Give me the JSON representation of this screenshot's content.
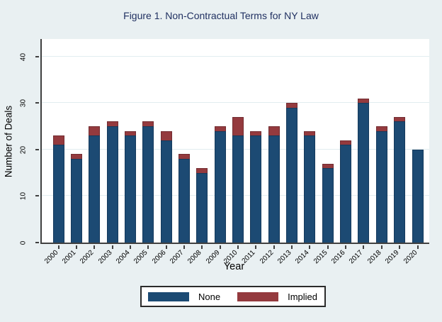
{
  "figure": {
    "title": "Figure 1. Non-Contractual Terms for NY Law",
    "background_color": "#e9f0f2",
    "title_color": "#203061"
  },
  "chart_data": {
    "type": "bar",
    "stacked": true,
    "title": "Figure 1. Non-Contractual Terms for NY Law",
    "xlabel": "Year",
    "ylabel": "Number of Deals",
    "ylim": [
      0,
      43.7
    ],
    "yticks": [
      0,
      10,
      20,
      30,
      40
    ],
    "grid": true,
    "legend_position": "bottom",
    "categories": [
      "2000",
      "2001",
      "2002",
      "2003",
      "2004",
      "2005",
      "2006",
      "2007",
      "2008",
      "2009",
      "2010",
      "2011",
      "2012",
      "2013",
      "2014",
      "2015",
      "2016",
      "2017",
      "2018",
      "2019",
      "2020"
    ],
    "series": [
      {
        "name": "None",
        "color": "#1c4a73",
        "values": [
          21,
          18,
          23,
          25,
          23,
          25,
          22,
          18,
          15,
          24,
          23,
          23,
          23,
          29,
          23,
          16,
          21,
          30,
          24,
          26,
          20
        ]
      },
      {
        "name": "Implied",
        "color": "#943a3e",
        "values": [
          2,
          1,
          2,
          1,
          1,
          1,
          2,
          1,
          1,
          1,
          4,
          1,
          2,
          1,
          1,
          1,
          1,
          1,
          1,
          1,
          0
        ]
      }
    ],
    "totals": [
      23,
      19,
      25,
      26,
      24,
      26,
      24,
      19,
      16,
      25,
      27,
      24,
      25,
      30,
      24,
      17,
      22,
      31,
      25,
      27,
      20
    ]
  },
  "legend": {
    "items": [
      {
        "label": "None",
        "color": "#1c4a73"
      },
      {
        "label": "Implied",
        "color": "#943a3e"
      }
    ]
  }
}
